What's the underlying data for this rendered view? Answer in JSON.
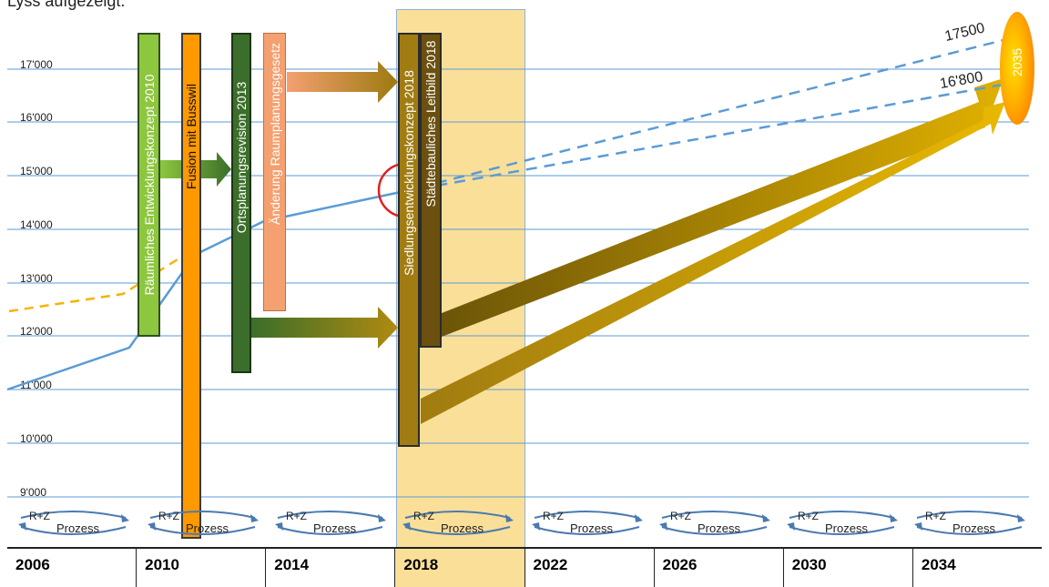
{
  "caption": "Lyss aufgezeigt.",
  "y_axis_labels": [
    "17'000",
    "16'000",
    "15'000",
    "14'000",
    "13'000",
    "12'000",
    "11'000",
    "10'000",
    "9'000"
  ],
  "bars": {
    "entwicklungskonzept": "Räumliches Entwicklungskonzept 2010",
    "fusion": "Fusion mit Busswil",
    "ortsplanung": "Ortsplanungsrevision 2013",
    "raumplanungsgesetz": "Änderung Raumplanungsgesetz",
    "siedlungsentwicklung": "Siedlungsentwicklungskonzept 2018",
    "leitbild": "Städtebauliches Leitbild 2018"
  },
  "target_year": "2035",
  "projections": {
    "high": "17500",
    "low": "16'800"
  },
  "process": {
    "rz": "R+Z",
    "label": "Prozess"
  },
  "timeline_years": [
    "2006",
    "2010",
    "2014",
    "2018",
    "2022",
    "2026",
    "2030",
    "2034"
  ],
  "highlight_year": "2018",
  "colors": {
    "gridline": "#5b9bd5",
    "population_line": "#5b9bd5",
    "highlight_band": "#fadf99",
    "green": "#8dc63f",
    "dark_green": "#3b6e2a",
    "orange": "#ff9900",
    "salmon": "#f4a070",
    "olive": "#9c7a10",
    "gold": "#d8a800",
    "marker_circle": "#e02020",
    "historic_dashed": "#f5b400"
  }
}
